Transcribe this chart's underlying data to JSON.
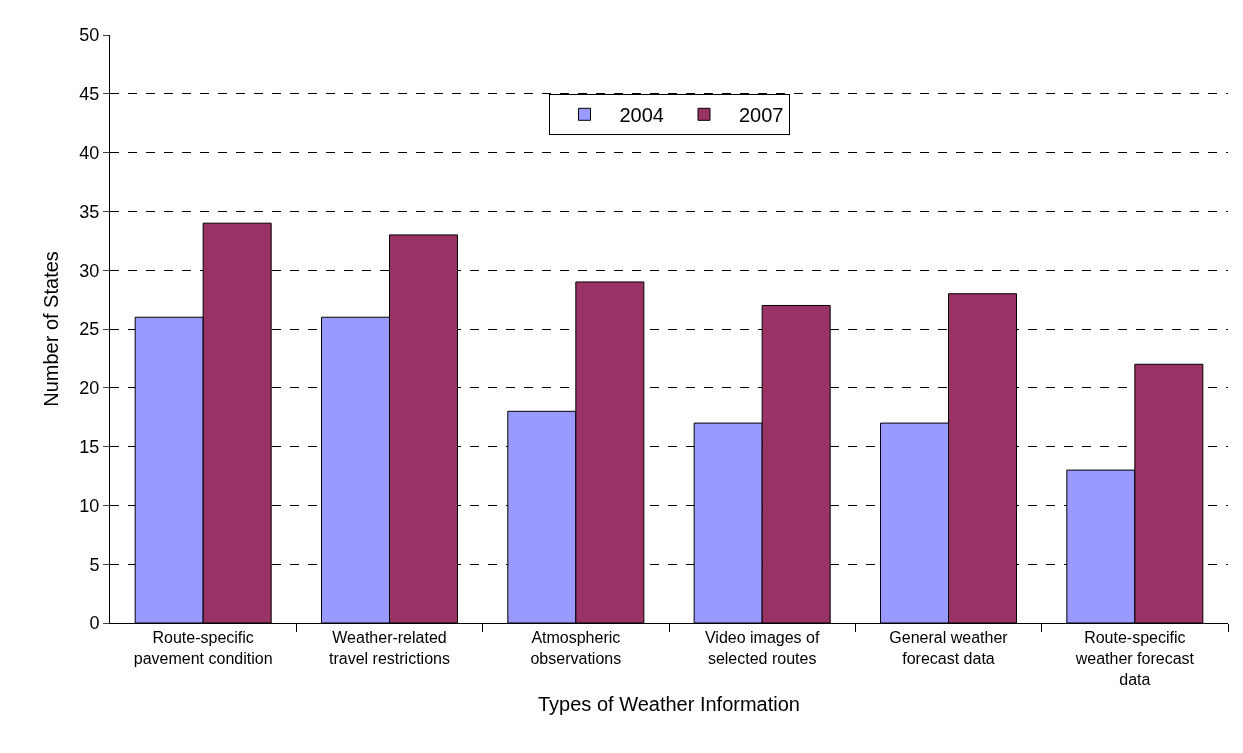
{
  "chart_data": {
    "type": "bar",
    "xlabel": "Types of Weather Information",
    "ylabel": "Number of States",
    "categories": [
      "Route-specific pavement condition",
      "Weather-related travel restrictions",
      "Atmospheric observations",
      "Video images of selected routes",
      "General weather forecast data",
      "Route-specific weather forecast data"
    ],
    "series": [
      {
        "name": "2004",
        "color": "#9999ff",
        "values": [
          26,
          26,
          18,
          17,
          17,
          13
        ]
      },
      {
        "name": "2007",
        "color": "#993366",
        "values": [
          34,
          33,
          29,
          27,
          28,
          22
        ]
      }
    ],
    "ylim": [
      0,
      50
    ],
    "yticks": [
      0,
      5,
      10,
      15,
      20,
      25,
      30,
      35,
      40,
      45,
      50
    ],
    "grid": "y",
    "legend": "top"
  }
}
